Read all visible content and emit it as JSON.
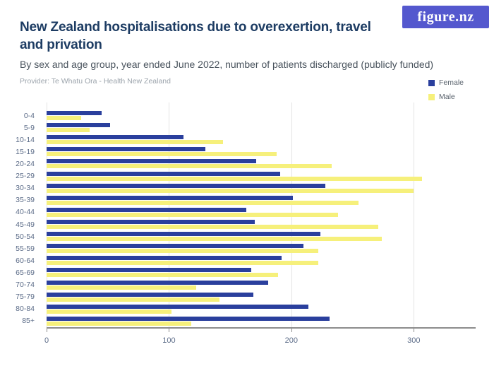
{
  "logo": {
    "text": "figure.nz",
    "bg_color": "#5458ce",
    "text_color": "#ffffff"
  },
  "header": {
    "title_line1": "New Zealand hospitalisations due to overexertion, travel",
    "title_line2": "and privation",
    "subtitle": "By sex and age group, year ended June 2022, number of patients discharged (publicly funded)",
    "provider": "Provider: Te Whatu Ora - Health New Zealand"
  },
  "legend": {
    "items": [
      {
        "label": "Female",
        "color": "#2a3f9d"
      },
      {
        "label": "Male",
        "color": "#f6f07b"
      }
    ]
  },
  "chart_data": {
    "type": "bar",
    "orientation": "horizontal",
    "title": "New Zealand hospitalisations due to overexertion, travel and privation",
    "subtitle": "By sex and age group, year ended June 2022, number of patients discharged (publicly funded)",
    "categories": [
      "0-4",
      "5-9",
      "10-14",
      "15-19",
      "20-24",
      "25-29",
      "30-34",
      "35-39",
      "40-44",
      "45-49",
      "50-54",
      "55-59",
      "60-64",
      "65-69",
      "70-74",
      "75-79",
      "80-84",
      "85+"
    ],
    "series": [
      {
        "name": "Female",
        "color": "#2a3f9d",
        "values": [
          45,
          52,
          112,
          130,
          171,
          191,
          228,
          201,
          163,
          170,
          224,
          210,
          192,
          167,
          181,
          169,
          214,
          231
        ]
      },
      {
        "name": "Male",
        "color": "#f6f07b",
        "values": [
          28,
          35,
          144,
          188,
          233,
          307,
          300,
          255,
          238,
          271,
          274,
          222,
          222,
          189,
          122,
          141,
          102,
          118
        ]
      }
    ],
    "xlim": [
      0,
      350
    ],
    "xticks": [
      0,
      100,
      200,
      300
    ],
    "grid": "vertical",
    "legend_position": "top-right"
  }
}
